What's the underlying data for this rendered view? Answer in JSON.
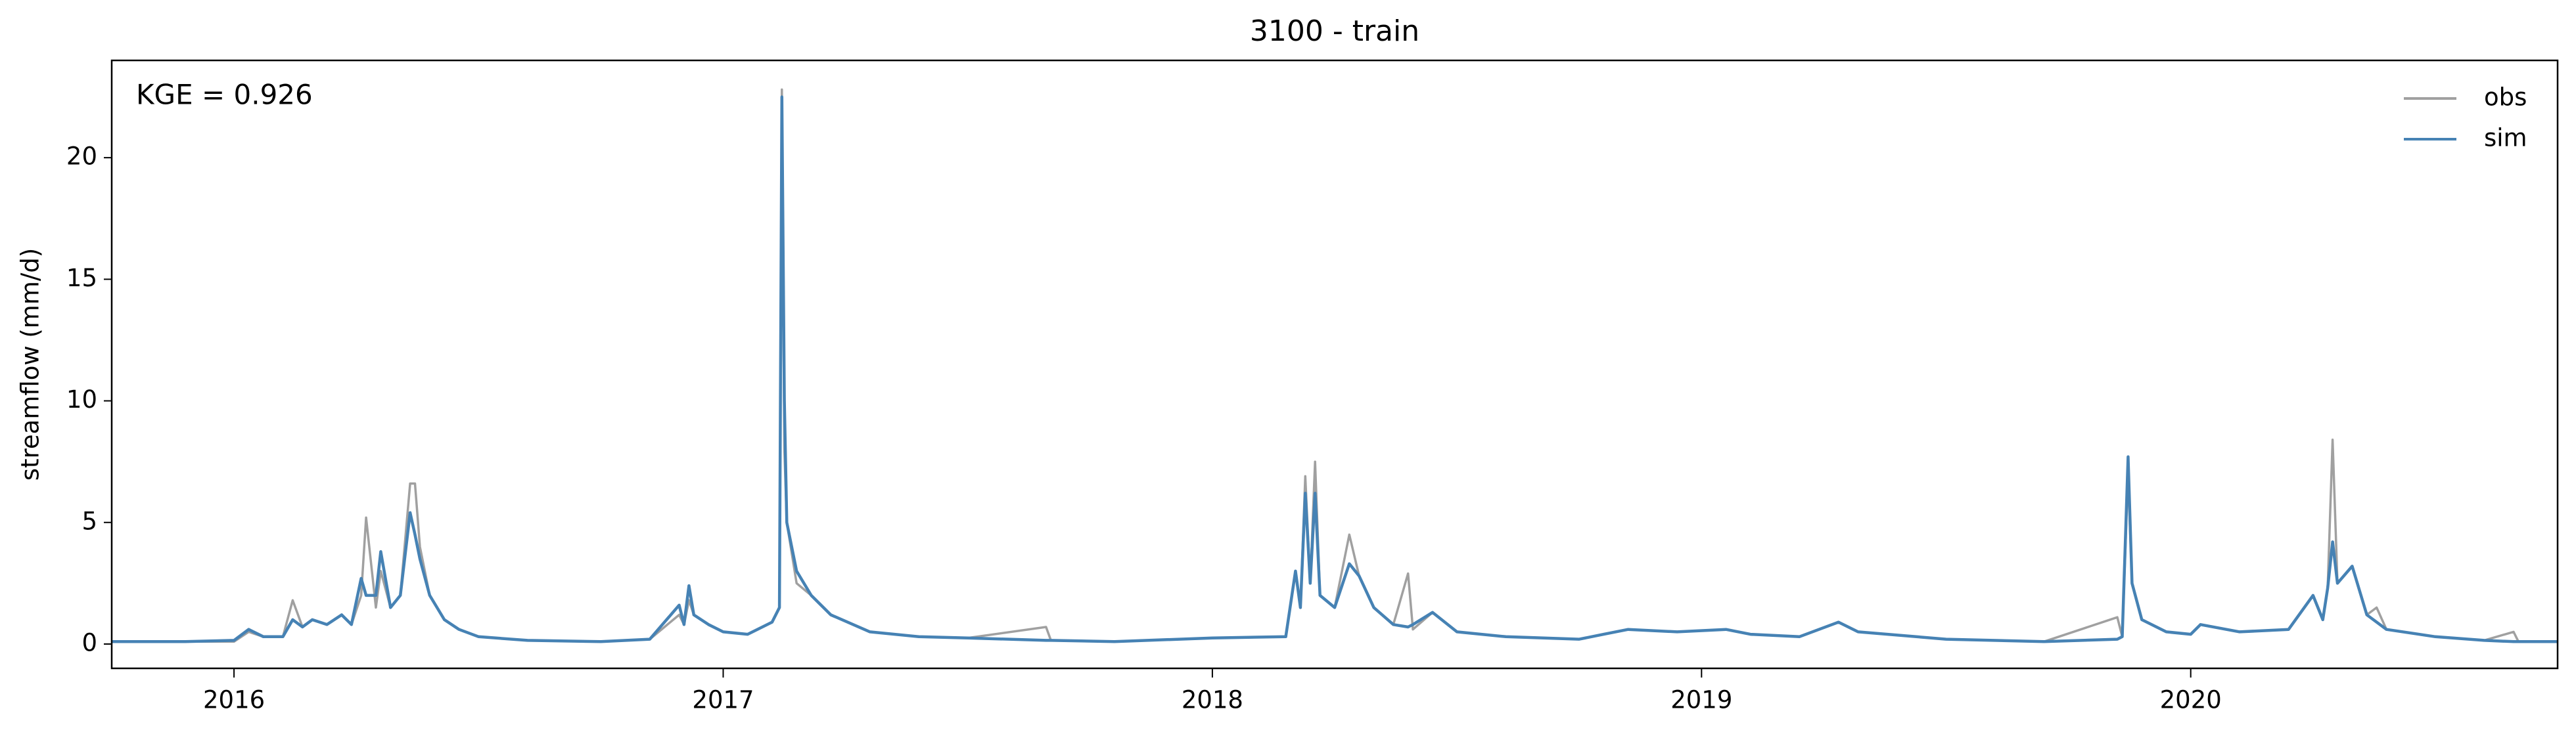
{
  "chart_data": {
    "type": "line",
    "title": "3100 - train",
    "ylabel": "streamflow (mm/d)",
    "annotation": "KGE = 0.926",
    "x": [
      2015.75,
      2015.9,
      2016.0,
      2016.03,
      2016.06,
      2016.1,
      2016.12,
      2016.14,
      2016.16,
      2016.19,
      2016.22,
      2016.24,
      2016.26,
      2016.27,
      2016.29,
      2016.3,
      2016.32,
      2016.34,
      2016.36,
      2016.37,
      2016.38,
      2016.4,
      2016.43,
      2016.46,
      2016.5,
      2016.6,
      2016.75,
      2016.85,
      2016.91,
      2016.92,
      2016.93,
      2016.94,
      2016.97,
      2017.0,
      2017.05,
      2017.1,
      2017.115,
      2017.12,
      2017.125,
      2017.13,
      2017.15,
      2017.18,
      2017.22,
      2017.3,
      2017.4,
      2017.5,
      2017.66,
      2017.67,
      2017.8,
      2018.0,
      2018.15,
      2018.17,
      2018.18,
      2018.19,
      2018.2,
      2018.21,
      2018.22,
      2018.25,
      2018.28,
      2018.3,
      2018.33,
      2018.37,
      2018.4,
      2018.41,
      2018.45,
      2018.5,
      2018.6,
      2018.75,
      2018.8,
      2018.85,
      2018.95,
      2019.05,
      2019.1,
      2019.2,
      2019.28,
      2019.32,
      2019.5,
      2019.7,
      2019.85,
      2019.86,
      2019.872,
      2019.88,
      2019.9,
      2019.95,
      2020.0,
      2020.02,
      2020.1,
      2020.2,
      2020.25,
      2020.27,
      2020.28,
      2020.29,
      2020.3,
      2020.33,
      2020.36,
      2020.38,
      2020.4,
      2020.5,
      2020.6,
      2020.66,
      2020.67,
      2020.75
    ],
    "series": [
      {
        "name": "obs",
        "color": "#a0a0a0",
        "values": [
          0.1,
          0.1,
          0.1,
          0.5,
          0.3,
          0.3,
          1.8,
          0.7,
          1.0,
          0.8,
          1.2,
          0.8,
          2.0,
          5.2,
          1.5,
          3.0,
          1.5,
          2.0,
          6.6,
          6.6,
          4.0,
          2.0,
          1.0,
          0.6,
          0.3,
          0.15,
          0.1,
          0.2,
          1.2,
          0.8,
          1.8,
          1.2,
          0.8,
          0.5,
          0.4,
          0.9,
          1.5,
          22.8,
          8,
          5,
          2.5,
          2.0,
          1.2,
          0.5,
          0.3,
          0.25,
          0.7,
          0.15,
          0.1,
          0.25,
          0.3,
          3.0,
          1.5,
          6.9,
          2.5,
          7.5,
          2.0,
          1.5,
          4.5,
          2.8,
          1.5,
          0.8,
          2.9,
          0.6,
          1.3,
          0.5,
          0.3,
          0.2,
          0.4,
          0.6,
          0.5,
          0.6,
          0.4,
          0.3,
          0.9,
          0.5,
          0.2,
          0.1,
          1.1,
          0.3,
          7.0,
          2.5,
          1.0,
          0.5,
          0.4,
          0.8,
          0.5,
          0.6,
          2.0,
          1.0,
          2.3,
          8.4,
          2.5,
          3.2,
          1.2,
          1.5,
          0.6,
          0.3,
          0.15,
          0.5,
          0.1,
          0.1
        ]
      },
      {
        "name": "sim",
        "color": "#4682b4",
        "values": [
          0.1,
          0.1,
          0.15,
          0.6,
          0.3,
          0.3,
          1.0,
          0.7,
          1.0,
          0.8,
          1.2,
          0.8,
          2.7,
          2.0,
          2.0,
          3.8,
          1.5,
          2.0,
          5.4,
          4.5,
          3.5,
          2.0,
          1.0,
          0.6,
          0.3,
          0.15,
          0.1,
          0.2,
          1.6,
          0.8,
          2.4,
          1.2,
          0.8,
          0.5,
          0.4,
          0.9,
          1.5,
          22.5,
          10,
          5,
          3,
          2.0,
          1.2,
          0.5,
          0.3,
          0.25,
          0.15,
          0.15,
          0.1,
          0.25,
          0.3,
          3.0,
          1.5,
          6.2,
          2.5,
          6.2,
          2.0,
          1.5,
          3.3,
          2.8,
          1.5,
          0.8,
          0.7,
          0.8,
          1.3,
          0.5,
          0.3,
          0.2,
          0.4,
          0.6,
          0.5,
          0.6,
          0.4,
          0.3,
          0.9,
          0.5,
          0.2,
          0.1,
          0.2,
          0.3,
          7.7,
          2.5,
          1.0,
          0.5,
          0.4,
          0.8,
          0.5,
          0.6,
          2.0,
          1.0,
          2.3,
          4.2,
          2.5,
          3.2,
          1.2,
          0.9,
          0.6,
          0.3,
          0.15,
          0.1,
          0.1,
          0.1
        ]
      }
    ],
    "xlim": [
      2015.75,
      2020.75
    ],
    "xticks": [
      2016,
      2017,
      2018,
      2019,
      2020
    ],
    "ylim": [
      -1,
      24
    ],
    "yticks": [
      0,
      5,
      10,
      15,
      20
    ],
    "legend": "upper right"
  }
}
